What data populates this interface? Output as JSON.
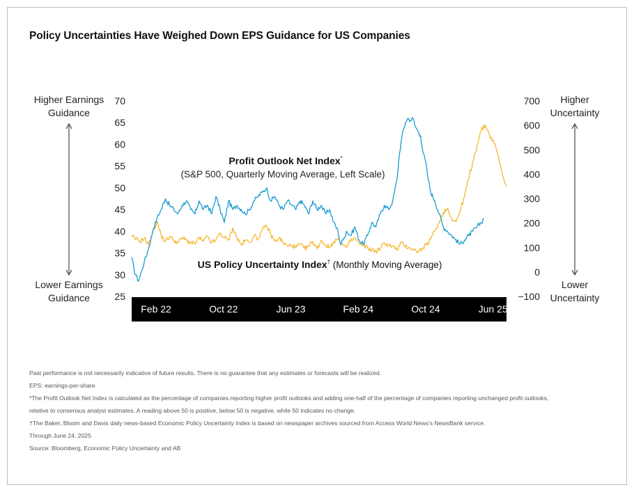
{
  "title": "Policy Uncertainties Have Weighed Down EPS Guidance for US Companies",
  "left_side": {
    "top_line1": "Higher Earnings",
    "top_line2": "Guidance",
    "bottom_line1": "Lower Earnings",
    "bottom_line2": "Guidance"
  },
  "right_side": {
    "top_line1": "Higher",
    "top_line2": "Uncertainty",
    "bottom_line1": "Lower",
    "bottom_line2": "Uncertainty"
  },
  "colors": {
    "profit_series": "#1a9bd0",
    "uncertainty_series": "#f5b731",
    "axis_bar": "#000000",
    "axis_bar_text": "#ffffff"
  },
  "chart_data": {
    "type": "line",
    "x_tick_labels": [
      "Feb 22",
      "Oct 22",
      "Jun 23",
      "Feb 24",
      "Oct 24",
      "Jun 25"
    ],
    "x_tick_positions": [
      0,
      8,
      16,
      24,
      32,
      40
    ],
    "x_range": [
      -0.5,
      44
    ],
    "y_left": {
      "ticks": [
        "70",
        "65",
        "60",
        "55",
        "50",
        "45",
        "40",
        "35",
        "30",
        "25"
      ],
      "range": [
        25,
        70
      ]
    },
    "y_right": {
      "ticks": [
        "700",
        "600",
        "500",
        "400",
        "300",
        "200",
        "100",
        "0",
        "−100"
      ],
      "range": [
        -100,
        700
      ]
    },
    "annotations": {
      "profit_title": "Profit Outlook Net Index",
      "profit_sup": "*",
      "profit_sub": "(S&P 500, Quarterly Moving Average, Left Scale)",
      "uncertainty_title": "US Policy Uncertainty Index",
      "uncertainty_sup": "†",
      "uncertainty_sub": " (Monthly Moving Average)"
    },
    "series": [
      {
        "name": "Profit Outlook Net Index",
        "axis": "left",
        "x": [
          -0.5,
          -0.2,
          0.3,
          0.7,
          1.0,
          1.5,
          2.0,
          2.5,
          3.0,
          3.5,
          4.0,
          4.5,
          5.0,
          5.5,
          6.0,
          6.5,
          7.0,
          7.5,
          8.0,
          8.5,
          9.0,
          9.5,
          10.0,
          10.5,
          11.0,
          11.5,
          12.0,
          12.5,
          13.0,
          13.5,
          14.0,
          14.5,
          15.0,
          15.5,
          16.0,
          16.5,
          17.0,
          17.5,
          18.0,
          18.5,
          19.0,
          19.5,
          20.0,
          20.5,
          21.0,
          21.5,
          22.0,
          22.5,
          23.0,
          23.5,
          24.0,
          24.3,
          24.6,
          25.0,
          25.5,
          26.0,
          26.5,
          27.0,
          27.5,
          28.0,
          28.5,
          29.0,
          29.5,
          30.0,
          30.5,
          31.0,
          31.3,
          31.6,
          32.0,
          32.3,
          32.6,
          32.9,
          33.2,
          33.5,
          33.8,
          34.1,
          34.4,
          34.7,
          35.0,
          35.5,
          36.0,
          36.5,
          37.0,
          37.5,
          38.0,
          38.5,
          39.0,
          39.5,
          40.0,
          40.5,
          41.0,
          41.3
        ],
        "values": [
          34,
          31,
          28.5,
          31,
          33,
          36,
          40,
          43,
          45,
          47.5,
          46,
          45,
          44,
          46,
          47,
          45,
          44,
          47,
          45,
          46,
          44,
          48,
          45,
          42,
          47,
          45,
          46,
          45,
          44,
          45,
          47,
          48,
          49,
          50,
          47,
          48,
          46,
          45,
          47,
          46,
          45,
          47,
          46,
          44,
          47,
          45,
          46,
          44,
          45,
          42,
          40,
          37,
          38,
          40,
          39,
          41,
          38,
          37,
          39,
          42,
          41,
          44,
          46,
          45,
          47,
          52,
          58,
          62,
          65,
          66,
          65.5,
          66,
          64,
          63,
          62,
          58,
          56,
          52,
          49,
          47,
          44,
          41,
          40,
          39,
          38,
          37,
          38,
          39,
          40,
          41,
          42,
          43
        ]
      },
      {
        "name": "US Policy Uncertainty Index",
        "axis": "right",
        "x": [
          -0.5,
          0,
          0.5,
          1,
          1.5,
          2,
          2.5,
          3,
          3.5,
          4,
          4.5,
          5,
          5.5,
          6,
          6.5,
          7,
          7.5,
          8,
          8.5,
          9,
          9.5,
          10,
          10.5,
          11,
          11.5,
          12,
          12.5,
          13,
          13.5,
          14,
          14.5,
          15,
          15.5,
          16,
          16.5,
          17,
          17.5,
          18,
          18.5,
          19,
          19.5,
          20,
          20.5,
          21,
          21.5,
          22,
          22.5,
          23,
          23.5,
          24,
          24.5,
          25,
          25.5,
          26,
          26.5,
          27,
          27.5,
          28,
          28.5,
          29,
          29.5,
          30,
          30.5,
          31,
          31.5,
          32,
          32.5,
          33,
          33.5,
          34,
          34.5,
          35,
          35.5,
          36,
          36.5,
          37,
          37.5,
          38,
          38.5,
          39,
          39.5,
          40,
          40.5,
          41,
          41.5,
          42,
          42.5,
          43,
          43.5,
          44
        ],
        "values": [
          145,
          135,
          125,
          140,
          110,
          165,
          205,
          150,
          125,
          145,
          130,
          120,
          140,
          130,
          120,
          115,
          140,
          125,
          145,
          120,
          130,
          160,
          140,
          130,
          180,
          140,
          110,
          130,
          120,
          150,
          135,
          170,
          190,
          155,
          125,
          140,
          120,
          105,
          110,
          100,
          115,
          95,
          105,
          125,
          95,
          130,
          110,
          100,
          125,
          135,
          115,
          100,
          125,
          140,
          115,
          105,
          100,
          90,
          85,
          95,
          120,
          110,
          105,
          90,
          120,
          105,
          100,
          90,
          85,
          95,
          110,
          135,
          170,
          200,
          245,
          260,
          220,
          205,
          250,
          310,
          380,
          450,
          520,
          580,
          600,
          560,
          530,
          480,
          400,
          350
        ]
      }
    ]
  },
  "notes": [
    "Past performance is not necessarily indicative of future results. There is no guarantee that any estimates or forecasts will be realized.",
    "EPS: earnings-per-share",
    "*The Profit Outlook Net Index is calculated as the percentage of companies reporting higher profit outlooks and adding one-half of the percentage of companies reporting unchanged profit outlooks,",
    "relative to consensus analyst estimates. A reading above 50 is positive, below 50 is negative, while 50 indicates no change.",
    "†The Baker, Bloom and Davis daily news-based Economic Policy Uncertainty Index is based on newspaper archives sourced from Access World News’s NewsBank service.",
    "Through June 24, 2025",
    "Source: Bloomberg, Economic Policy Uncertainty and AB"
  ]
}
